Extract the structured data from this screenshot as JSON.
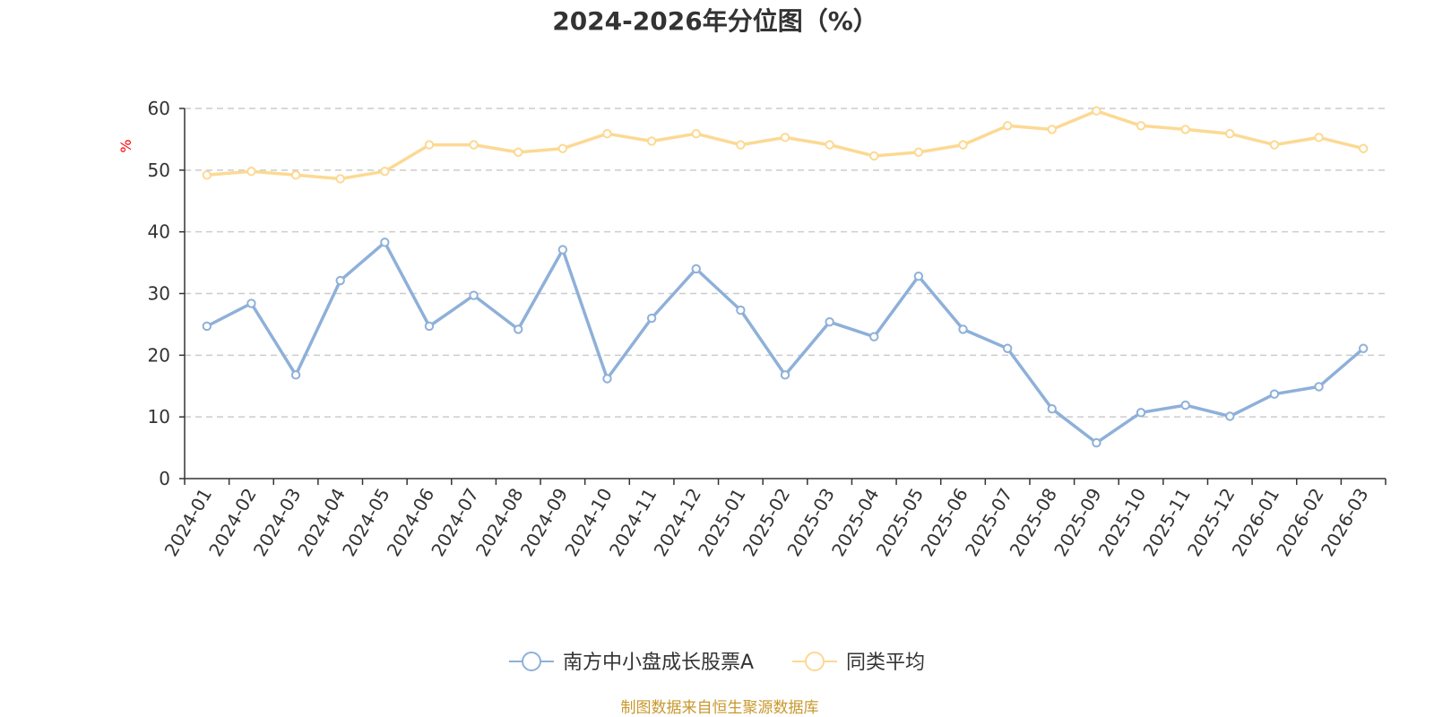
{
  "chart_data": {
    "type": "line",
    "title": "2024-2026年分位图（%）",
    "ylabel": "%",
    "xlabel": "",
    "ylim": [
      0,
      60
    ],
    "yticks": [
      "0",
      "10",
      "20",
      "30",
      "40",
      "50",
      "60"
    ],
    "grid": true,
    "legend_placement": "bottom-center",
    "categories": [
      "2024-01",
      "2024-02",
      "2024-03",
      "2024-04",
      "2024-05",
      "2024-06",
      "2024-07",
      "2024-08",
      "2024-09",
      "2024-10",
      "2024-11",
      "2024-12",
      "2025-01",
      "2025-02",
      "2025-03",
      "2025-04",
      "2025-05",
      "2025-06",
      "2025-07",
      "2025-08",
      "2025-09",
      "2025-10",
      "2025-11",
      "2025-12",
      "2026-01",
      "2026-02",
      "2026-03"
    ],
    "series": [
      {
        "name": "南方中小盘成长股票A",
        "color": "#8eb0d9",
        "values": [
          24.7,
          28.4,
          16.8,
          32.1,
          38.3,
          24.7,
          29.7,
          24.2,
          37.1,
          16.2,
          26.0,
          34.0,
          27.3,
          16.8,
          25.4,
          23.0,
          32.8,
          24.2,
          21.1,
          11.3,
          5.8,
          10.7,
          11.9,
          10.1,
          13.7,
          14.9,
          21.1
        ]
      },
      {
        "name": "同类平均",
        "color": "#fcd993",
        "values": [
          49.2,
          49.8,
          49.2,
          48.6,
          49.8,
          54.1,
          54.1,
          52.9,
          53.5,
          55.9,
          54.7,
          55.9,
          54.1,
          55.3,
          54.1,
          52.3,
          52.9,
          54.1,
          57.2,
          56.6,
          59.6,
          57.2,
          56.6,
          55.9,
          54.1,
          55.3,
          53.5
        ]
      }
    ]
  },
  "source_text": "制图数据来自恒生聚源数据库"
}
